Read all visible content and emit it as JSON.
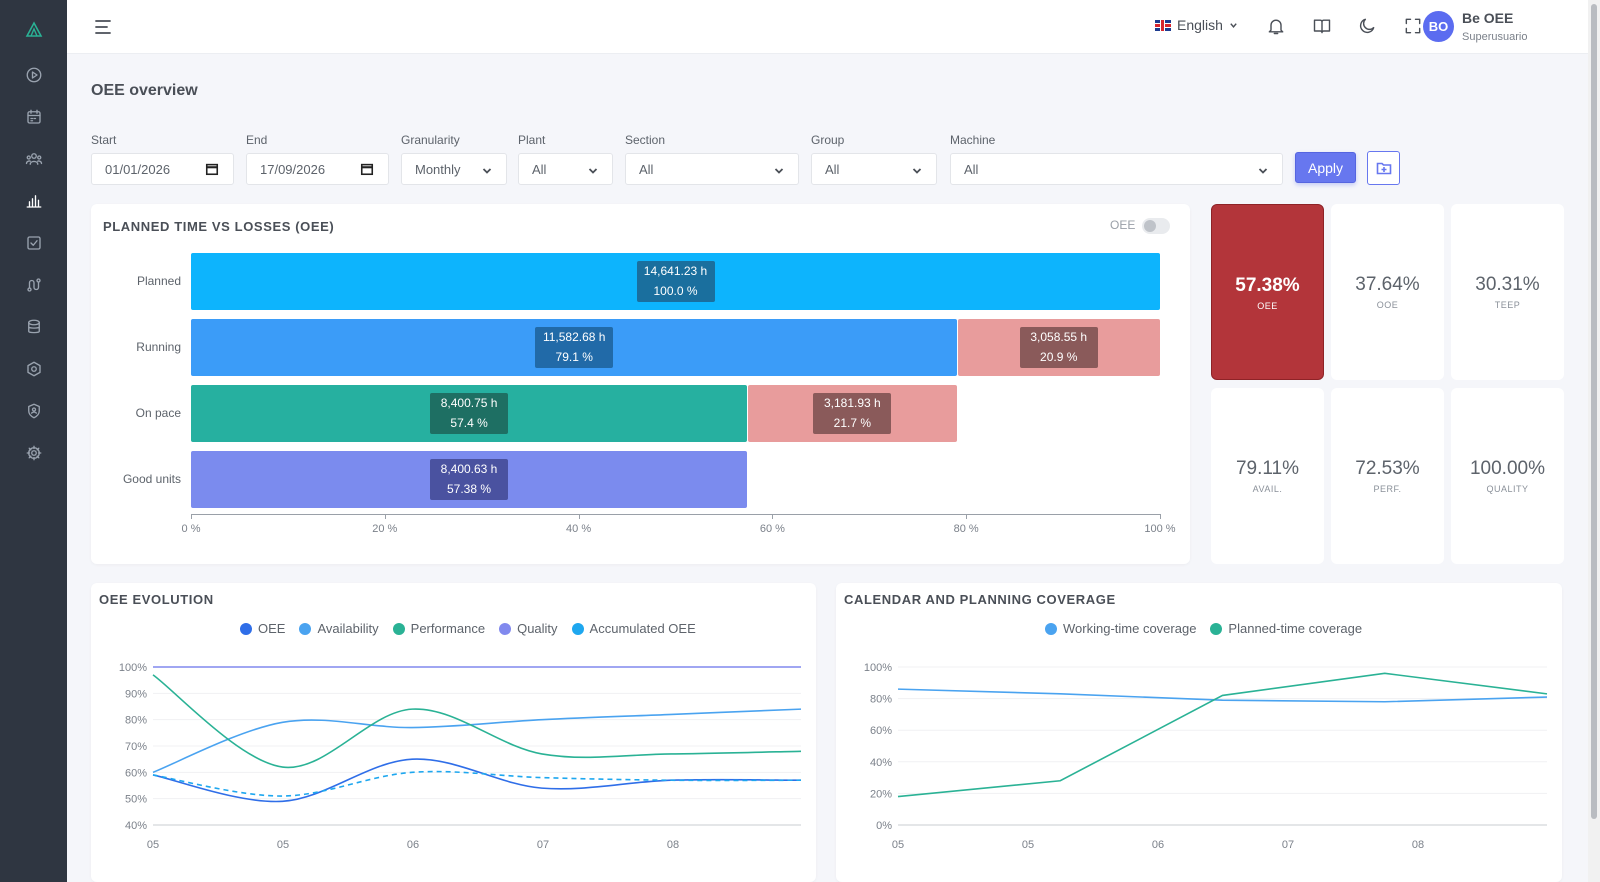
{
  "header": {
    "language": "English",
    "user_initials": "BO",
    "user_name": "Be OEE",
    "user_role": "Superusuario"
  },
  "page": {
    "title": "OEE overview"
  },
  "filters": {
    "start": {
      "label": "Start",
      "value": "01/01/2026"
    },
    "end": {
      "label": "End",
      "value": "17/09/2026"
    },
    "granularity": {
      "label": "Granularity",
      "value": "Monthly"
    },
    "plant": {
      "label": "Plant",
      "value": "All"
    },
    "section": {
      "label": "Section",
      "value": "All"
    },
    "group": {
      "label": "Group",
      "value": "All"
    },
    "machine": {
      "label": "Machine",
      "value": "All"
    },
    "apply_label": "Apply"
  },
  "icons": {
    "sidebar": [
      "logo-icon",
      "play-icon",
      "calendar-icon",
      "users-icon",
      "bar-chart-icon",
      "checklist-icon",
      "route-icon",
      "database-icon",
      "settings-hex-icon",
      "shield-user-icon",
      "gear-icon"
    ],
    "header": [
      "menu-icon",
      "bell-icon",
      "book-icon",
      "moon-icon",
      "fullscreen-icon"
    ]
  },
  "colors": {
    "planned": "#0db4fd",
    "running": "#3b9cf8",
    "on_pace": "#26b0a0",
    "good_units": "#7b8bee",
    "loss": "#e89c9c",
    "oee_tile": "#b3353a",
    "accent": "#6777ef"
  },
  "losses_card": {
    "title": "PLANNED TIME VS LOSSES (OEE)",
    "toggle_label": "OEE",
    "toggle_on": false
  },
  "kpis": [
    {
      "value": "57.38%",
      "caption": "OEE"
    },
    {
      "value": "37.64%",
      "caption": "OOE"
    },
    {
      "value": "30.31%",
      "caption": "TEEP"
    },
    {
      "value": "79.11%",
      "caption": "AVAIL."
    },
    {
      "value": "72.53%",
      "caption": "PERF."
    },
    {
      "value": "100.00%",
      "caption": "QUALITY"
    }
  ],
  "evolution_card": {
    "title": "OEE EVOLUTION"
  },
  "coverage_card": {
    "title": "CALENDAR AND PLANNING COVERAGE"
  },
  "chart_data": [
    {
      "type": "bar",
      "orientation": "horizontal",
      "stacked": true,
      "categories": [
        "Planned",
        "Running",
        "On pace",
        "Good units"
      ],
      "series": [
        {
          "values": [
            100.0,
            79.1,
            57.4,
            57.38
          ],
          "labels": [
            "14,641.23 h",
            "11,582.68 h",
            "8,400.75 h",
            "8,400.63 h"
          ],
          "pct_labels": [
            "100.0 %",
            "79.1 %",
            "57.4 %",
            "57.38 %"
          ]
        },
        {
          "values": [
            0,
            20.9,
            21.7,
            0
          ],
          "labels": [
            "",
            "3,058.55 h",
            "3,181.93 h",
            ""
          ],
          "pct_labels": [
            "",
            "20.9 %",
            "21.7 %",
            ""
          ]
        }
      ],
      "xticks": [
        "0 %",
        "20 %",
        "40 %",
        "60 %",
        "80 %",
        "100 %"
      ],
      "xlim": [
        0,
        100
      ]
    },
    {
      "type": "line",
      "x": [
        "05",
        "05",
        "06",
        "07",
        "08"
      ],
      "yticks": [
        "40%",
        "50%",
        "60%",
        "70%",
        "80%",
        "90%",
        "100%"
      ],
      "ylim": [
        40,
        100
      ],
      "legend_position": "top-center",
      "series": [
        {
          "name": "OEE",
          "color": "#2f6ee8",
          "values": [
            59,
            49,
            65,
            54,
            57
          ]
        },
        {
          "name": "Availability",
          "color": "#4aa3f0",
          "values": [
            60,
            79,
            77,
            80,
            84
          ]
        },
        {
          "name": "Performance",
          "color": "#2ab295",
          "values": [
            97,
            62,
            84,
            67,
            68
          ]
        },
        {
          "name": "Quality",
          "color": "#8189ee",
          "values": [
            100,
            100,
            100,
            100,
            100
          ]
        },
        {
          "name": "Accumulated OEE",
          "color": "#1ea7ef",
          "dashed": true,
          "values": [
            59,
            51,
            60,
            58,
            57
          ]
        }
      ],
      "curve_x": [
        0,
        1,
        2,
        3,
        4,
        5
      ],
      "curve_series": {
        "OEE": [
          59,
          49,
          65,
          54,
          57,
          57
        ],
        "Availability": [
          60,
          79,
          77,
          80,
          82,
          84
        ],
        "Performance": [
          97,
          62,
          84,
          67,
          67,
          68
        ],
        "Quality": [
          100,
          100,
          100,
          100,
          100,
          100
        ],
        "Accumulated OEE": [
          59,
          51,
          60,
          58,
          57,
          57
        ]
      }
    },
    {
      "type": "line",
      "x": [
        "05",
        "05",
        "06",
        "07",
        "08"
      ],
      "yticks": [
        "0%",
        "20%",
        "40%",
        "60%",
        "80%",
        "100%"
      ],
      "ylim": [
        0,
        100
      ],
      "legend_position": "top-center",
      "series": [
        {
          "name": "Working-time coverage",
          "color": "#4aa3f0",
          "values": [
            86,
            83,
            79,
            78,
            81
          ]
        },
        {
          "name": "Planned-time coverage",
          "color": "#2ab295",
          "values": [
            18,
            28,
            82,
            96,
            83
          ]
        }
      ]
    }
  ]
}
